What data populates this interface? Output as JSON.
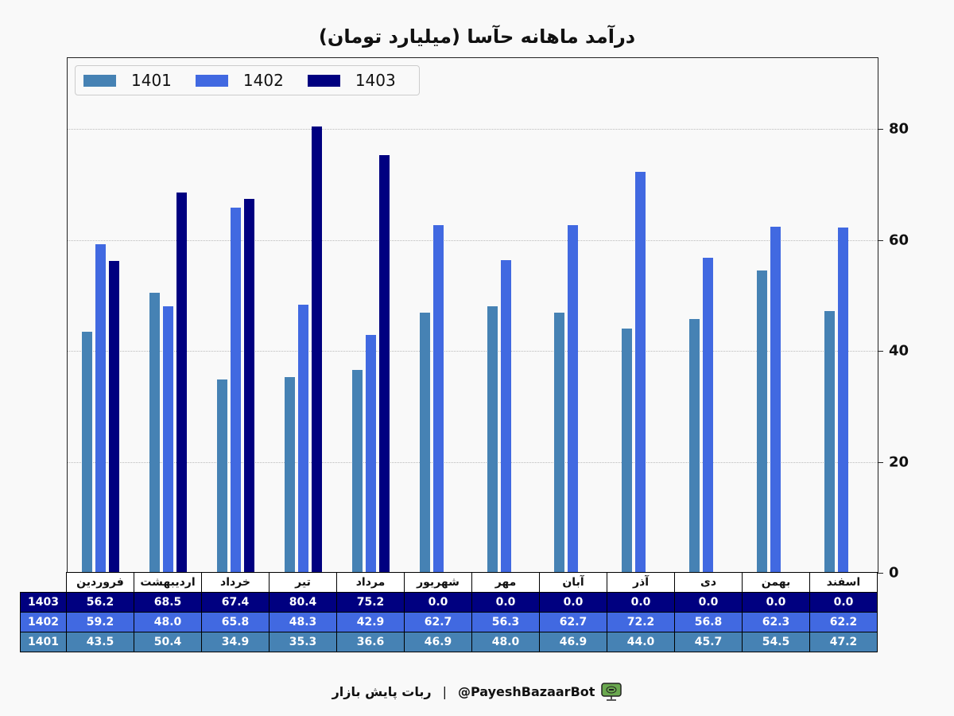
{
  "chart_data": {
    "type": "bar",
    "title": "درآمد ماهانه حآسا (میلیارد تومان)",
    "xlabel": "",
    "ylabel": "",
    "ylim": [
      0,
      92
    ],
    "y_ticks": [
      0,
      20,
      40,
      60,
      80
    ],
    "y_axis_position": "right",
    "grid": "horizontal dotted",
    "legend_position": "upper left",
    "categories": [
      "فروردین",
      "اردیبهشت",
      "خرداد",
      "تیر",
      "مرداد",
      "شهریور",
      "مهر",
      "آبان",
      "آذر",
      "دی",
      "بهمن",
      "اسفند"
    ],
    "series": [
      {
        "name": "1401",
        "color": "#4682b4",
        "values": [
          43.5,
          50.4,
          34.9,
          35.3,
          36.6,
          46.9,
          48.0,
          46.9,
          44.0,
          45.7,
          54.5,
          47.2
        ]
      },
      {
        "name": "1402",
        "color": "#4169e1",
        "values": [
          59.2,
          48.0,
          65.8,
          48.3,
          42.9,
          62.7,
          56.3,
          62.7,
          72.2,
          56.8,
          62.3,
          62.2
        ]
      },
      {
        "name": "1403",
        "color": "#000080",
        "values": [
          56.2,
          68.5,
          67.4,
          80.4,
          75.2,
          0.0,
          0.0,
          0.0,
          0.0,
          0.0,
          0.0,
          0.0
        ]
      }
    ],
    "table": {
      "rows_order": [
        "1403",
        "1402",
        "1401"
      ],
      "display": {
        "1403": [
          "56.2",
          "68.5",
          "67.4",
          "80.4",
          "75.2",
          "0.0",
          "0.0",
          "0.0",
          "0.0",
          "0.0",
          "0.0",
          "0.0"
        ],
        "1402": [
          "59.2",
          "48.0",
          "65.8",
          "48.3",
          "42.9",
          "62.7",
          "56.3",
          "62.7",
          "72.2",
          "56.8",
          "62.3",
          "62.2"
        ],
        "1401": [
          "43.5",
          "50.4",
          "34.9",
          "35.3",
          "36.6",
          "46.9",
          "48.0",
          "46.9",
          "44.0",
          "45.7",
          "54.5",
          "47.2"
        ]
      }
    }
  },
  "header": {
    "title": "درآمد ماهانه حآسا (میلیارد تومان)"
  },
  "legend": [
    {
      "label": "1401",
      "color": "#4682b4"
    },
    {
      "label": "1402",
      "color": "#4169e1"
    },
    {
      "label": "1403",
      "color": "#000080"
    }
  ],
  "y_axis": {
    "ticks": [
      "0",
      "20",
      "40",
      "60",
      "80"
    ]
  },
  "footer": {
    "handle": "@PayeshBazaarBot",
    "separator": "|",
    "name": "ربات پایش بازار",
    "icon": "monitor-bot-icon"
  }
}
